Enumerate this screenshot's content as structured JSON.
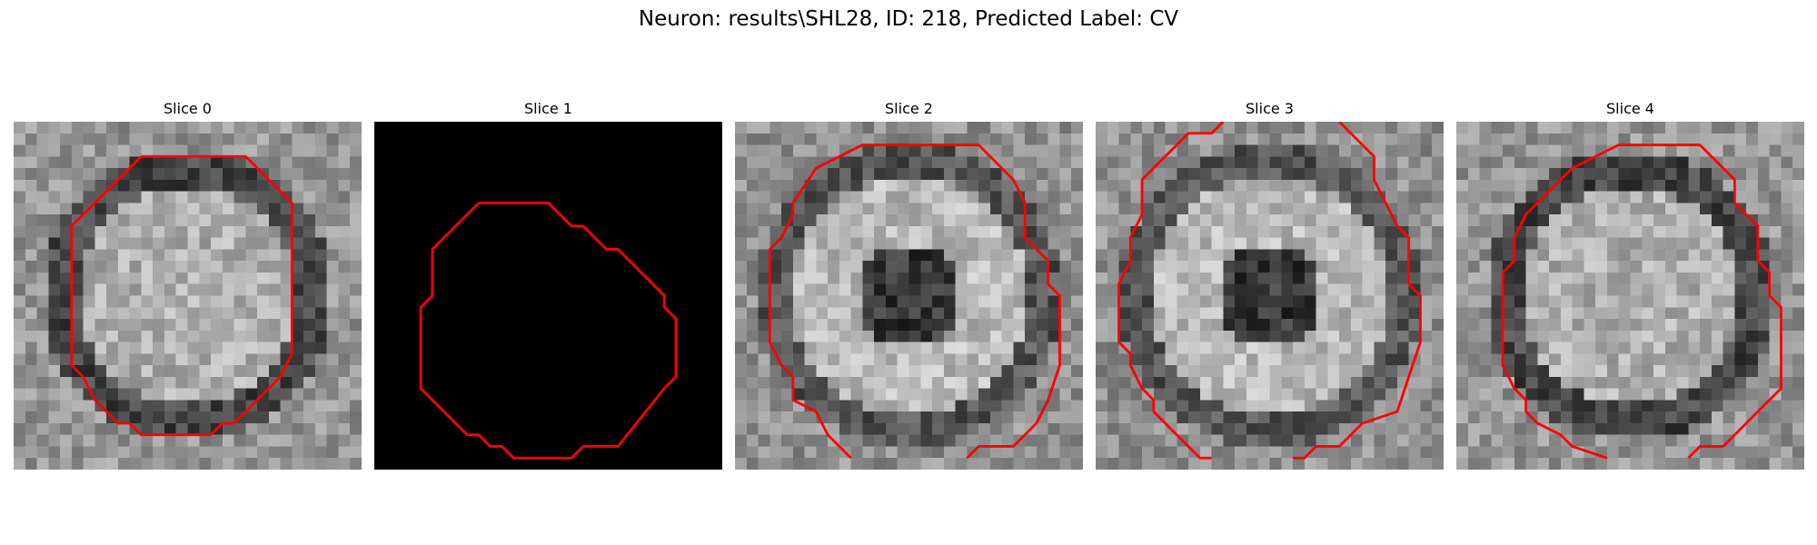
{
  "figure": {
    "title": "Neuron: results\\SHL28, ID: 218, Predicted Label: CV",
    "panels": [
      {
        "title": "Slice 0",
        "kind": "vesicle"
      },
      {
        "title": "Slice 1",
        "kind": "blank"
      },
      {
        "title": "Slice 2",
        "kind": "ring"
      },
      {
        "title": "Slice 3",
        "kind": "ring"
      },
      {
        "title": "Slice 4",
        "kind": "vesicle"
      }
    ],
    "colors": {
      "contour": "#ff0000",
      "background_blank": "#000000"
    }
  }
}
